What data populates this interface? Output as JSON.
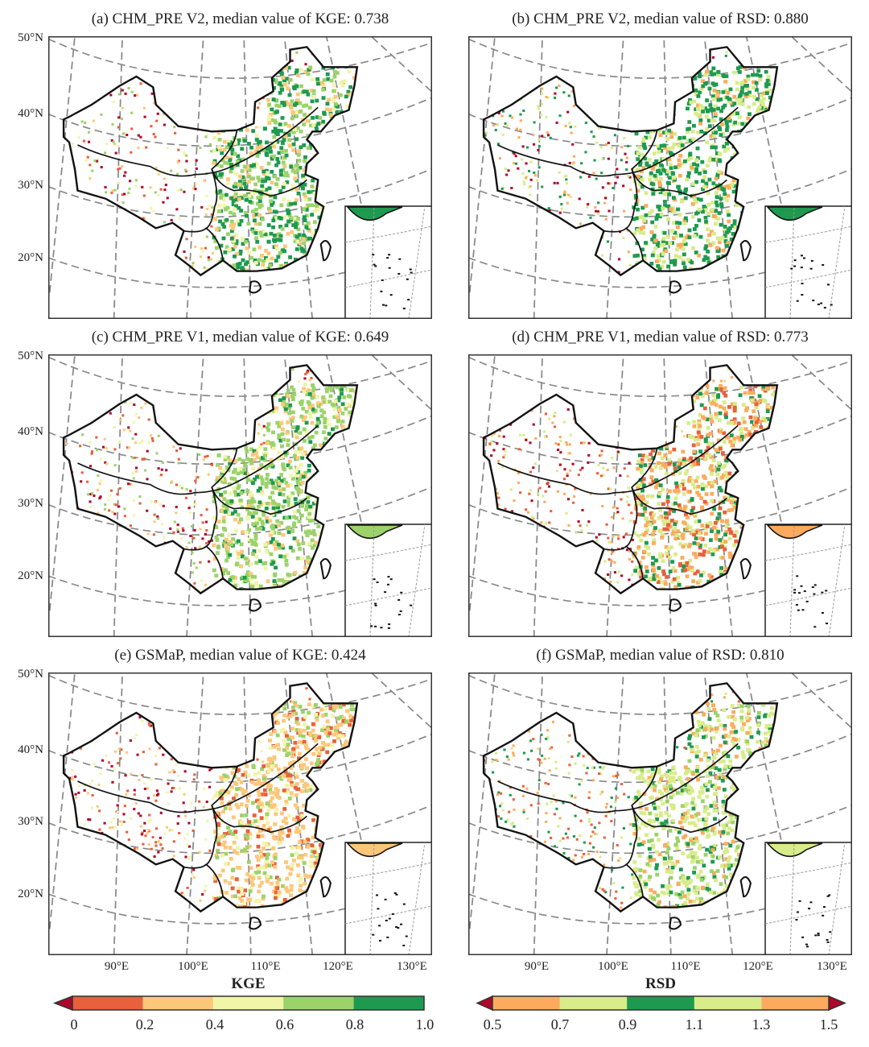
{
  "panels": [
    {
      "title": "(a) CHM_PRE V2, median value of KGE: 0.738",
      "metric": "KGE",
      "median": 0.738,
      "east": [
        "#1e9a50",
        "#1e9a50",
        "#1e9a50",
        "#9bd36a",
        "#9bd36a",
        "#f0f5a8",
        "#fdc77a"
      ],
      "west": [
        "#e8603c",
        "#b0062a",
        "#9bd36a",
        "#fdc77a",
        "#f0f5a8"
      ]
    },
    {
      "title": "(b) CHM_PRE V2, median value of RSD: 0.880",
      "metric": "RSD",
      "median": 0.88,
      "east": [
        "#1e9a50",
        "#1e9a50",
        "#d8ec8a",
        "#d8ec8a",
        "#fcab5e",
        "#1e9a50"
      ],
      "west": [
        "#1e9a50",
        "#d8ec8a",
        "#fcab5e",
        "#b0062a"
      ]
    },
    {
      "title": "(c) CHM_PRE V1, median value of KGE: 0.649",
      "metric": "KGE",
      "median": 0.649,
      "east": [
        "#1e9a50",
        "#9bd36a",
        "#9bd36a",
        "#9bd36a",
        "#f0f5a8",
        "#fdc77a"
      ],
      "west": [
        "#e8603c",
        "#b0062a",
        "#fdc77a",
        "#9bd36a",
        "#f0f5a8"
      ]
    },
    {
      "title": "(d) CHM_PRE V1, median value of RSD: 0.773",
      "metric": "RSD",
      "median": 0.773,
      "east": [
        "#fcab5e",
        "#fcab5e",
        "#d8ec8a",
        "#d8ec8a",
        "#1e9a50",
        "#e8603c"
      ],
      "west": [
        "#fcab5e",
        "#e8603c",
        "#d8ec8a",
        "#b0062a"
      ]
    },
    {
      "title": "(e) GSMaP, median value of KGE: 0.424",
      "metric": "KGE",
      "median": 0.424,
      "east": [
        "#fdc77a",
        "#fdc77a",
        "#f0f5a8",
        "#e8603c",
        "#9bd36a",
        "#fdc77a"
      ],
      "west": [
        "#e8603c",
        "#b0062a",
        "#fdc77a",
        "#f0f5a8"
      ]
    },
    {
      "title": "(f) GSMaP, median value of RSD: 0.810",
      "metric": "RSD",
      "median": 0.81,
      "east": [
        "#d8ec8a",
        "#d8ec8a",
        "#9bd36a",
        "#1e9a50",
        "#fcab5e",
        "#d8ec8a"
      ],
      "west": [
        "#1e9a50",
        "#d8ec8a",
        "#fcab5e",
        "#e8603c"
      ]
    }
  ],
  "lat_labels": [
    "50°N",
    "40°N",
    "30°N",
    "20°N"
  ],
  "lon_labels": [
    "90°E",
    "100°E",
    "110°E",
    "120°E",
    "130°E"
  ],
  "colorbars": [
    {
      "title": "KGE",
      "ticks": [
        "0",
        "0.2",
        "0.4",
        "0.6",
        "0.8",
        "1.0"
      ],
      "colors": [
        "#e8603c",
        "#fdc77a",
        "#f0f5a8",
        "#9bd36a",
        "#1e9a50"
      ],
      "under": "#b0062a",
      "over": null
    },
    {
      "title": "RSD",
      "ticks": [
        "0.5",
        "0.7",
        "0.9",
        "1.1",
        "1.3",
        "1.5"
      ],
      "colors": [
        "#fcab5e",
        "#d8ec8a",
        "#1e9a50",
        "#d8ec8a",
        "#fcab5e"
      ],
      "under": "#b0062a",
      "over": "#b0062a"
    }
  ]
}
